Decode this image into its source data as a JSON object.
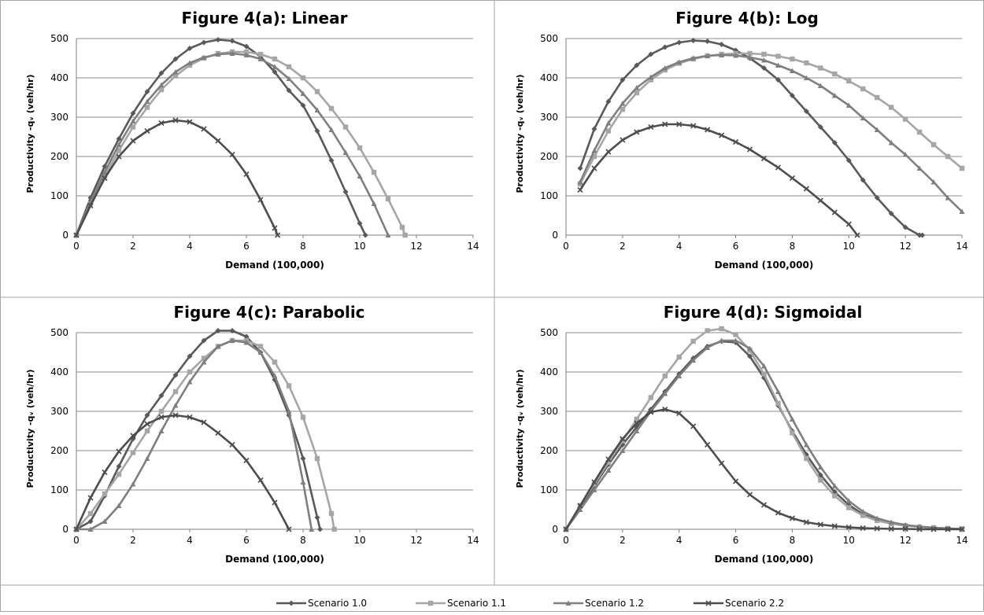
{
  "legend": {
    "items": [
      {
        "label": "Scenario 1.0",
        "color": "#595959",
        "marker": "diamond"
      },
      {
        "label": "Scenario 1.1",
        "color": "#a6a6a6",
        "marker": "square"
      },
      {
        "label": "Scenario 1.2",
        "color": "#7f7f7f",
        "marker": "triangle"
      },
      {
        "label": "Scenario 2.2",
        "color": "#4d4d4d",
        "marker": "x"
      }
    ]
  },
  "chart_data": [
    {
      "type": "line",
      "title": "Figure 4(a): Linear",
      "xlabel": "Demand (100,000)",
      "ylabel": "Productivity -qᵥ  (veh/hr)",
      "xlim": [
        0,
        14
      ],
      "ylim": [
        0,
        500
      ],
      "xticks": [
        "0",
        "2",
        "4",
        "6",
        "8",
        "10",
        "12",
        "14"
      ],
      "yticks": [
        "0",
        "100",
        "200",
        "300",
        "400",
        "500"
      ],
      "grid": true,
      "series": [
        {
          "name": "Scenario 1.0",
          "color": "#595959",
          "marker": "diamond",
          "x": [
            0,
            0.5,
            1,
            1.5,
            2,
            2.5,
            3,
            3.5,
            4,
            4.5,
            5,
            5.5,
            6,
            6.5,
            7,
            7.5,
            8,
            8.5,
            9,
            9.5,
            10,
            10.2
          ],
          "y": [
            0,
            95,
            175,
            245,
            310,
            365,
            412,
            448,
            475,
            490,
            497,
            494,
            480,
            454,
            415,
            368,
            330,
            265,
            190,
            110,
            30,
            0
          ]
        },
        {
          "name": "Scenario 1.1",
          "color": "#a6a6a6",
          "marker": "square",
          "x": [
            0,
            0.5,
            1,
            1.5,
            2,
            2.5,
            3,
            3.5,
            4,
            4.5,
            5,
            5.5,
            6,
            6.5,
            7,
            7.5,
            8,
            8.5,
            9,
            9.5,
            10,
            10.5,
            11,
            11.5,
            11.6
          ],
          "y": [
            0,
            80,
            150,
            215,
            275,
            325,
            370,
            405,
            432,
            450,
            462,
            466,
            466,
            460,
            448,
            428,
            400,
            365,
            322,
            275,
            222,
            160,
            92,
            20,
            0
          ]
        },
        {
          "name": "Scenario 1.2",
          "color": "#7f7f7f",
          "marker": "triangle",
          "x": [
            0,
            0.5,
            1,
            1.5,
            2,
            2.5,
            3,
            3.5,
            4,
            4.5,
            5,
            5.5,
            6,
            6.5,
            7,
            7.5,
            8,
            8.5,
            9,
            9.5,
            10,
            10.5,
            11
          ],
          "y": [
            0,
            85,
            160,
            230,
            290,
            340,
            382,
            415,
            438,
            452,
            460,
            462,
            458,
            448,
            428,
            398,
            360,
            318,
            268,
            210,
            150,
            80,
            0
          ]
        },
        {
          "name": "Scenario 2.2",
          "color": "#4d4d4d",
          "marker": "x",
          "x": [
            0,
            0.5,
            1,
            1.5,
            2,
            2.5,
            3,
            3.5,
            4,
            4.5,
            5,
            5.5,
            6,
            6.5,
            7,
            7.1
          ],
          "y": [
            0,
            75,
            145,
            200,
            240,
            265,
            285,
            292,
            288,
            270,
            240,
            205,
            155,
            90,
            18,
            0
          ]
        }
      ]
    },
    {
      "type": "line",
      "title": "Figure 4(b): Log",
      "xlabel": "Demand (100,000)",
      "ylabel": "Productivity -qᵥ  (veh/hr)",
      "xlim": [
        0,
        14
      ],
      "ylim": [
        0,
        500
      ],
      "xticks": [
        "0",
        "2",
        "4",
        "6",
        "8",
        "10",
        "12",
        "14"
      ],
      "yticks": [
        "0",
        "100",
        "200",
        "300",
        "400",
        "500"
      ],
      "grid": true,
      "series": [
        {
          "name": "Scenario 1.0",
          "color": "#595959",
          "marker": "diamond",
          "x": [
            0.5,
            1,
            1.5,
            2,
            2.5,
            3,
            3.5,
            4,
            4.5,
            5,
            5.5,
            6,
            6.5,
            7,
            7.5,
            8,
            8.5,
            9,
            9.5,
            10,
            10.5,
            11,
            11.5,
            12,
            12.5,
            12.6
          ],
          "y": [
            170,
            270,
            340,
            395,
            432,
            460,
            478,
            490,
            495,
            493,
            485,
            470,
            450,
            425,
            395,
            355,
            315,
            275,
            235,
            190,
            140,
            95,
            55,
            20,
            0,
            0
          ]
        },
        {
          "name": "Scenario 1.1",
          "color": "#a6a6a6",
          "marker": "square",
          "x": [
            0.5,
            1,
            1.5,
            2,
            2.5,
            3,
            3.5,
            4,
            4.5,
            5,
            5.5,
            6,
            6.5,
            7,
            7.5,
            8,
            8.5,
            9,
            9.5,
            10,
            10.5,
            11,
            11.5,
            12,
            12.5,
            13,
            13.5,
            14
          ],
          "y": [
            130,
            200,
            265,
            320,
            362,
            395,
            420,
            437,
            448,
            456,
            460,
            462,
            462,
            460,
            455,
            448,
            438,
            425,
            410,
            392,
            372,
            350,
            325,
            295,
            262,
            230,
            200,
            170
          ]
        },
        {
          "name": "Scenario 1.2",
          "color": "#7f7f7f",
          "marker": "triangle",
          "x": [
            0.5,
            1,
            1.5,
            2,
            2.5,
            3,
            3.5,
            4,
            4.5,
            5,
            5.5,
            6,
            6.5,
            7,
            7.5,
            8,
            8.5,
            9,
            9.5,
            10,
            10.5,
            11,
            11.5,
            12,
            12.5,
            13,
            13.5,
            14
          ],
          "y": [
            135,
            215,
            285,
            335,
            375,
            402,
            425,
            440,
            450,
            456,
            458,
            457,
            452,
            445,
            432,
            418,
            400,
            380,
            355,
            330,
            298,
            268,
            235,
            205,
            170,
            135,
            95,
            60
          ]
        },
        {
          "name": "Scenario 2.2",
          "color": "#4d4d4d",
          "marker": "x",
          "x": [
            0.5,
            1,
            1.5,
            2,
            2.5,
            3,
            3.5,
            4,
            4.5,
            5,
            5.5,
            6,
            6.5,
            7,
            7.5,
            8,
            8.5,
            9,
            9.5,
            10,
            10.3
          ],
          "y": [
            115,
            170,
            212,
            242,
            262,
            275,
            282,
            282,
            278,
            268,
            254,
            237,
            218,
            195,
            172,
            145,
            118,
            88,
            58,
            28,
            0
          ]
        }
      ]
    },
    {
      "type": "line",
      "title": "Figure 4(c): Parabolic",
      "xlabel": "Demand (100,000)",
      "ylabel": "Productivity -qᵥ  (veh/hr)",
      "xlim": [
        0,
        14
      ],
      "ylim": [
        0,
        500
      ],
      "xticks": [
        "0",
        "2",
        "4",
        "6",
        "8",
        "10",
        "12",
        "14"
      ],
      "yticks": [
        "0",
        "100",
        "200",
        "300",
        "400",
        "500"
      ],
      "grid": true,
      "series": [
        {
          "name": "Scenario 1.0",
          "color": "#595959",
          "marker": "diamond",
          "x": [
            0,
            0.5,
            1,
            1.5,
            2,
            2.5,
            3,
            3.5,
            4,
            4.5,
            5,
            5.5,
            6,
            6.5,
            7,
            7.5,
            8,
            8.5,
            8.6
          ],
          "y": [
            0,
            20,
            85,
            160,
            230,
            290,
            340,
            392,
            440,
            480,
            505,
            505,
            490,
            450,
            380,
            290,
            180,
            30,
            0
          ]
        },
        {
          "name": "Scenario 1.1",
          "color": "#a6a6a6",
          "marker": "square",
          "x": [
            0,
            0.5,
            1,
            1.5,
            2,
            2.5,
            3,
            3.5,
            4,
            4.5,
            5,
            5.5,
            6,
            6.5,
            7,
            7.5,
            8,
            8.5,
            9,
            9.1
          ],
          "y": [
            0,
            40,
            90,
            140,
            195,
            250,
            300,
            350,
            400,
            435,
            465,
            480,
            480,
            465,
            425,
            365,
            285,
            180,
            40,
            0
          ]
        },
        {
          "name": "Scenario 1.2",
          "color": "#7f7f7f",
          "marker": "triangle",
          "x": [
            0,
            0.5,
            1,
            1.5,
            2,
            2.5,
            3,
            3.5,
            4,
            4.5,
            5,
            5.5,
            6,
            6.5,
            7,
            7.5,
            8,
            8.3
          ],
          "y": [
            0,
            0,
            20,
            60,
            115,
            180,
            250,
            315,
            375,
            425,
            465,
            480,
            475,
            450,
            390,
            300,
            120,
            0
          ]
        },
        {
          "name": "Scenario 2.2",
          "color": "#4d4d4d",
          "marker": "x",
          "x": [
            0,
            0.5,
            1,
            1.5,
            2,
            2.5,
            3,
            3.5,
            4,
            4.5,
            5,
            5.5,
            6,
            6.5,
            7,
            7.5
          ],
          "y": [
            0,
            80,
            145,
            198,
            238,
            268,
            285,
            290,
            285,
            272,
            245,
            215,
            175,
            125,
            68,
            0
          ]
        }
      ]
    },
    {
      "type": "line",
      "title": "Figure 4(d): Sigmoidal",
      "xlabel": "Demand (100,000)",
      "ylabel": "Productivity -qᵥ  (veh/hr)",
      "xlim": [
        0,
        14
      ],
      "ylim": [
        0,
        500
      ],
      "xticks": [
        "0",
        "2",
        "4",
        "6",
        "8",
        "10",
        "12",
        "14"
      ],
      "yticks": [
        "0",
        "100",
        "200",
        "300",
        "400",
        "500"
      ],
      "grid": true,
      "series": [
        {
          "name": "Scenario 1.0",
          "color": "#595959",
          "marker": "diamond",
          "x": [
            0,
            0.5,
            1,
            1.5,
            2,
            2.5,
            3,
            3.5,
            4,
            4.5,
            5,
            5.5,
            6,
            6.5,
            7,
            7.5,
            8,
            8.5,
            9,
            9.5,
            10,
            10.5,
            11,
            11.5,
            12,
            12.5,
            13,
            13.5,
            14
          ],
          "y": [
            0,
            55,
            110,
            165,
            215,
            260,
            305,
            350,
            395,
            435,
            465,
            478,
            475,
            440,
            385,
            315,
            250,
            190,
            138,
            95,
            62,
            38,
            24,
            16,
            10,
            6,
            4,
            2,
            1
          ]
        },
        {
          "name": "Scenario 1.1",
          "color": "#a6a6a6",
          "marker": "square",
          "x": [
            0,
            0.5,
            1,
            1.5,
            2,
            2.5,
            3,
            3.5,
            4,
            4.5,
            5,
            5.5,
            6,
            6.5,
            7,
            7.5,
            8,
            8.5,
            9,
            9.5,
            10,
            10.5,
            11,
            11.5,
            12,
            12.5,
            13,
            13.5,
            14
          ],
          "y": [
            0,
            60,
            115,
            170,
            225,
            280,
            335,
            390,
            438,
            478,
            505,
            510,
            495,
            455,
            395,
            320,
            245,
            180,
            125,
            85,
            55,
            35,
            22,
            14,
            9,
            6,
            4,
            2,
            1
          ]
        },
        {
          "name": "Scenario 1.2",
          "color": "#7f7f7f",
          "marker": "triangle",
          "x": [
            0,
            0.5,
            1,
            1.5,
            2,
            2.5,
            3,
            3.5,
            4,
            4.5,
            5,
            5.5,
            6,
            6.5,
            7,
            7.5,
            8,
            8.5,
            9,
            9.5,
            10,
            10.5,
            11,
            11.5,
            12,
            12.5,
            13,
            13.5,
            14
          ],
          "y": [
            0,
            50,
            100,
            150,
            200,
            250,
            300,
            345,
            390,
            430,
            462,
            480,
            480,
            460,
            415,
            350,
            280,
            215,
            158,
            110,
            72,
            45,
            28,
            18,
            11,
            7,
            4,
            2,
            1
          ]
        },
        {
          "name": "Scenario 2.2",
          "color": "#4d4d4d",
          "marker": "x",
          "x": [
            0,
            0.5,
            1,
            1.5,
            2,
            2.5,
            3,
            3.5,
            4,
            4.5,
            5,
            5.5,
            6,
            6.5,
            7,
            7.5,
            8,
            8.5,
            9,
            9.5,
            10,
            10.5,
            11,
            11.5,
            12,
            12.5,
            13,
            13.5,
            14
          ],
          "y": [
            0,
            60,
            120,
            178,
            230,
            270,
            298,
            305,
            295,
            262,
            215,
            168,
            122,
            88,
            62,
            42,
            28,
            18,
            12,
            8,
            5,
            3,
            2,
            1,
            1,
            0,
            0,
            0,
            0
          ]
        }
      ]
    }
  ]
}
